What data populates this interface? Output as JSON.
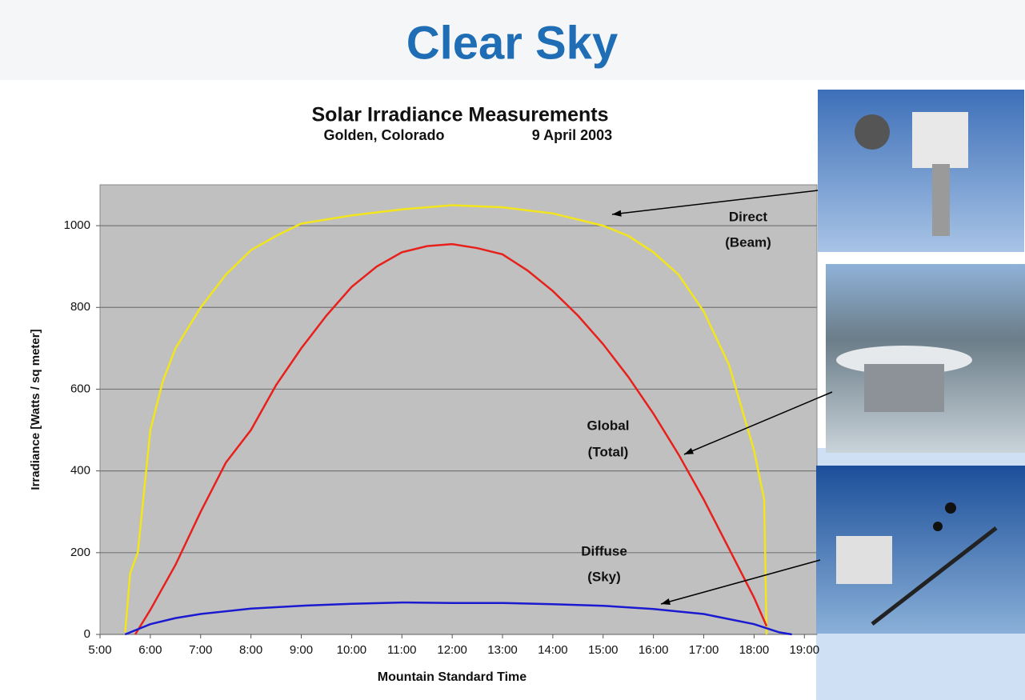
{
  "title": "Clear Sky",
  "chart_data": {
    "type": "line",
    "title": "Solar Irradiance Measurements",
    "subtitle": [
      "Golden, Colorado",
      "9 April 2003"
    ],
    "x_label": "Mountain Standard Time",
    "y_label": "Irradiance [Watts / sq meter]",
    "xlim": [
      5,
      19.25
    ],
    "ylim": [
      0,
      1100
    ],
    "xticks": [
      {
        "value": 5,
        "label": "5:00"
      },
      {
        "value": 6,
        "label": "6:00"
      },
      {
        "value": 7,
        "label": "7:00"
      },
      {
        "value": 8,
        "label": "8:00"
      },
      {
        "value": 9,
        "label": "9:00"
      },
      {
        "value": 10,
        "label": "10:00"
      },
      {
        "value": 11,
        "label": "11:00"
      },
      {
        "value": 12,
        "label": "12:00"
      },
      {
        "value": 13,
        "label": "13:00"
      },
      {
        "value": 14,
        "label": "14:00"
      },
      {
        "value": 15,
        "label": "15:00"
      },
      {
        "value": 16,
        "label": "16:00"
      },
      {
        "value": 17,
        "label": "17:00"
      },
      {
        "value": 18,
        "label": "18:00"
      },
      {
        "value": 19,
        "label": "19:00"
      }
    ],
    "yticks": [
      0,
      200,
      400,
      600,
      800,
      1000
    ],
    "grid": true,
    "series": [
      {
        "name": [
          "Direct",
          "(Beam)"
        ],
        "color": "#f2e51c",
        "x": [
          5.5,
          5.6,
          5.75,
          6,
          6.25,
          6.5,
          7,
          7.5,
          8,
          8.5,
          9,
          10,
          11,
          12,
          13,
          14,
          15,
          15.5,
          16,
          16.5,
          17,
          17.5,
          18,
          18.2,
          18.25
        ],
        "values": [
          5,
          150,
          200,
          500,
          620,
          700,
          800,
          880,
          940,
          975,
          1005,
          1025,
          1040,
          1050,
          1045,
          1030,
          1000,
          975,
          935,
          880,
          790,
          660,
          450,
          330,
          0
        ]
      },
      {
        "name": [
          "Global",
          "(Total)"
        ],
        "color": "#e8201c",
        "x": [
          5.7,
          6,
          6.5,
          7,
          7.5,
          8,
          8.5,
          9,
          9.5,
          10,
          10.5,
          11,
          11.5,
          12,
          12.5,
          13,
          13.5,
          14,
          14.5,
          15,
          15.5,
          16,
          16.5,
          17,
          17.5,
          18,
          18.25
        ],
        "values": [
          0,
          60,
          170,
          300,
          420,
          500,
          610,
          700,
          780,
          850,
          900,
          935,
          950,
          955,
          945,
          930,
          890,
          840,
          780,
          710,
          630,
          540,
          440,
          330,
          210,
          90,
          20
        ]
      },
      {
        "name": [
          "Diffuse",
          "(Sky)"
        ],
        "color": "#1a1ad0",
        "x": [
          5.5,
          6,
          6.5,
          7,
          8,
          9,
          10,
          11,
          12,
          13,
          14,
          15,
          16,
          17,
          18,
          18.5,
          18.75
        ],
        "values": [
          0,
          25,
          40,
          50,
          63,
          70,
          75,
          78,
          77,
          77,
          74,
          70,
          62,
          50,
          25,
          5,
          0
        ]
      }
    ]
  }
}
